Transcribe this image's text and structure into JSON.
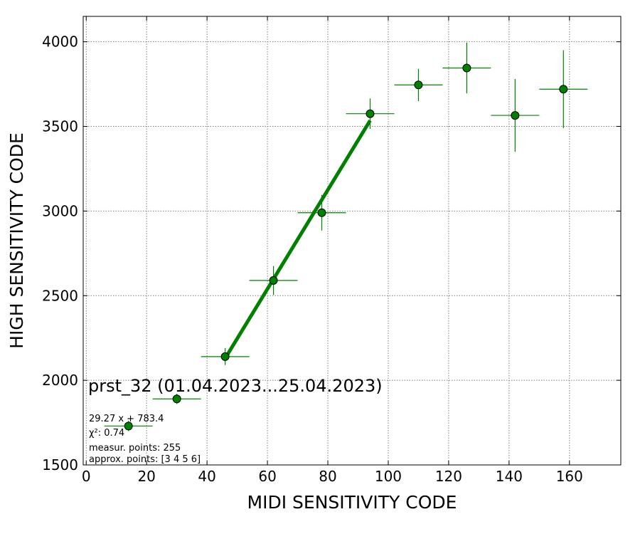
{
  "chart_data": {
    "type": "scatter",
    "title": "prst_32 (01.04.2023...25.04.2023)",
    "xlabel": "MIDI SENSITIVITY CODE",
    "ylabel": "HIGH SENSITIVITY CODE",
    "xlim": [
      -1,
      177
    ],
    "ylim": [
      1500,
      4150
    ],
    "xticks": [
      0,
      20,
      40,
      60,
      80,
      100,
      120,
      140,
      160
    ],
    "yticks": [
      1500,
      2000,
      2500,
      3000,
      3500,
      4000
    ],
    "grid": true,
    "series": [
      {
        "points": [
          {
            "x": 14,
            "y": 1730,
            "xerr": 8,
            "yerr": 30
          },
          {
            "x": 30,
            "y": 1890,
            "xerr": 8,
            "yerr": 30
          },
          {
            "x": 46,
            "y": 2140,
            "xerr": 8,
            "yerr": 50
          },
          {
            "x": 62,
            "y": 2590,
            "xerr": 8,
            "yerr": 85
          },
          {
            "x": 78,
            "y": 2990,
            "xerr": 8,
            "yerr": 105
          },
          {
            "x": 94,
            "y": 3575,
            "xerr": 8,
            "yerr": 90
          },
          {
            "x": 110,
            "y": 3745,
            "xerr": 8,
            "yerr": 95
          },
          {
            "x": 126,
            "y": 3845,
            "xerr": 8,
            "yerr": 150
          },
          {
            "x": 142,
            "y": 3565,
            "xerr": 8,
            "yerr": 215
          },
          {
            "x": 158,
            "y": 3720,
            "xerr": 8,
            "yerr": 230
          }
        ],
        "color": "#008000"
      }
    ],
    "fit": {
      "slope": 29.27,
      "intercept": 783.4,
      "x_range": [
        46,
        94
      ],
      "color": "#008000"
    },
    "annotations": [
      "29.27 x + 783.4",
      "χ²: 0.74",
      "measur. points: 255",
      "approx. points: [3 4 5 6]"
    ]
  }
}
